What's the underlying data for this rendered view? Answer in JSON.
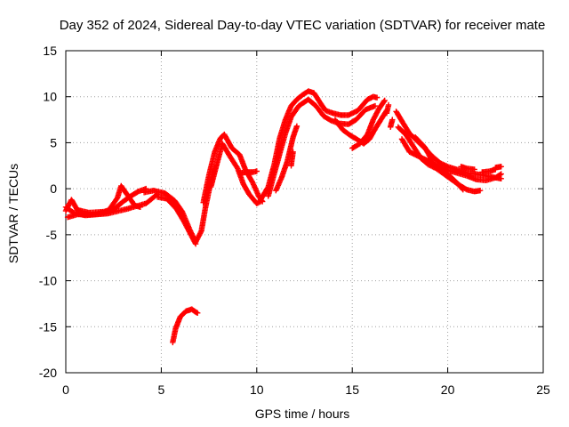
{
  "chart_data": {
    "type": "scatter",
    "title": "Day 352 of 2024, Sidereal Day-to-day VTEC variation (SDTVAR) for receiver mate",
    "xlabel": "GPS time / hours",
    "ylabel": "SDTVAR / TECUs",
    "xlim": [
      0,
      25
    ],
    "ylim": [
      -20,
      15
    ],
    "xticks": [
      0,
      5,
      10,
      15,
      20,
      25
    ],
    "xtick_labels": [
      "0",
      "5",
      "10",
      "15",
      "20",
      "25"
    ],
    "yticks": [
      -20,
      -15,
      -10,
      -5,
      0,
      5,
      10,
      15
    ],
    "ytick_labels": [
      "-20",
      "-15",
      "-10",
      "-5",
      "0",
      "5",
      "10",
      "15"
    ],
    "grid": true,
    "marker": "+",
    "series": [
      {
        "name": "SDTVAR",
        "color": "#ff0000",
        "tracks": [
          [
            [
              0.0,
              -2.4
            ],
            [
              0.3,
              -1.2
            ],
            [
              0.6,
              -2.3
            ],
            [
              1.2,
              -2.6
            ],
            [
              2.0,
              -2.5
            ],
            [
              2.6,
              -2.1
            ],
            [
              3.0,
              -1.4
            ],
            [
              3.4,
              -0.8
            ],
            [
              3.8,
              -0.3
            ],
            [
              4.2,
              0.0
            ]
          ],
          [
            [
              0.1,
              -3.1
            ],
            [
              0.6,
              -2.8
            ],
            [
              1.5,
              -2.8
            ],
            [
              2.2,
              -2.5
            ],
            [
              2.7,
              -1.0
            ],
            [
              2.9,
              0.3
            ],
            [
              3.2,
              -0.6
            ],
            [
              3.6,
              -1.8
            ],
            [
              3.9,
              -2.0
            ]
          ],
          [
            [
              0.0,
              -2.0
            ],
            [
              0.4,
              -2.6
            ],
            [
              1.0,
              -2.9
            ],
            [
              2.2,
              -2.7
            ],
            [
              3.2,
              -2.2
            ],
            [
              4.2,
              -1.6
            ],
            [
              4.8,
              -0.6
            ]
          ],
          [
            [
              4.1,
              -0.4
            ],
            [
              4.6,
              -0.2
            ],
            [
              5.2,
              -0.5
            ],
            [
              5.7,
              -1.3
            ],
            [
              6.1,
              -2.5
            ],
            [
              6.5,
              -4.5
            ],
            [
              6.8,
              -5.8
            ],
            [
              7.1,
              -4.6
            ],
            [
              7.3,
              -2.2
            ],
            [
              7.6,
              0.8
            ],
            [
              7.8,
              2.2
            ]
          ],
          [
            [
              4.8,
              -0.9
            ],
            [
              5.3,
              -1.1
            ],
            [
              5.8,
              -2.2
            ],
            [
              6.2,
              -3.6
            ],
            [
              6.6,
              -5.2
            ],
            [
              6.8,
              -6.0
            ]
          ],
          [
            [
              5.6,
              -16.7
            ],
            [
              5.75,
              -15.2
            ],
            [
              6.0,
              -13.9
            ],
            [
              6.3,
              -13.3
            ],
            [
              6.6,
              -13.1
            ],
            [
              6.8,
              -13.4
            ],
            [
              6.9,
              -13.5
            ]
          ],
          [
            [
              7.2,
              -1.5
            ],
            [
              7.5,
              1.5
            ],
            [
              7.8,
              4.0
            ],
            [
              8.1,
              5.5
            ],
            [
              8.3,
              5.9
            ],
            [
              8.7,
              4.4
            ],
            [
              9.1,
              3.7
            ],
            [
              9.4,
              2.1
            ],
            [
              9.8,
              0.6
            ],
            [
              10.1,
              -0.8
            ],
            [
              10.3,
              -1.4
            ]
          ],
          [
            [
              7.6,
              0.2
            ],
            [
              7.9,
              2.6
            ],
            [
              8.2,
              4.9
            ],
            [
              8.6,
              3.5
            ],
            [
              9.0,
              2.2
            ],
            [
              9.3,
              0.5
            ],
            [
              9.6,
              -0.6
            ],
            [
              10.0,
              -1.6
            ],
            [
              10.2,
              -1.4
            ]
          ],
          [
            [
              9.1,
              1.7
            ],
            [
              9.5,
              1.8
            ],
            [
              9.8,
              1.8
            ],
            [
              10.0,
              1.9
            ]
          ],
          [
            [
              10.2,
              -1.2
            ],
            [
              10.6,
              0.2
            ],
            [
              10.9,
              2.5
            ],
            [
              11.2,
              5.5
            ],
            [
              11.5,
              7.5
            ],
            [
              11.8,
              9.0
            ],
            [
              12.1,
              9.7
            ],
            [
              12.4,
              10.2
            ],
            [
              12.7,
              10.6
            ],
            [
              13.0,
              10.4
            ],
            [
              13.3,
              9.4
            ],
            [
              13.6,
              8.5
            ],
            [
              14.0,
              8.2
            ],
            [
              14.4,
              8.0
            ],
            [
              14.8,
              8.0
            ],
            [
              15.3,
              8.5
            ],
            [
              15.8,
              9.7
            ],
            [
              16.1,
              10.0
            ],
            [
              16.3,
              9.9
            ]
          ],
          [
            [
              10.6,
              -0.8
            ],
            [
              10.9,
              1.5
            ],
            [
              11.2,
              3.8
            ],
            [
              11.5,
              6.0
            ],
            [
              11.8,
              7.8
            ],
            [
              12.2,
              9.0
            ],
            [
              12.7,
              9.7
            ],
            [
              13.1,
              9.0
            ],
            [
              13.5,
              7.9
            ],
            [
              13.9,
              7.4
            ],
            [
              14.3,
              7.1
            ],
            [
              14.8,
              7.0
            ],
            [
              15.2,
              7.5
            ],
            [
              15.7,
              8.6
            ],
            [
              16.2,
              9.0
            ]
          ],
          [
            [
              11.0,
              -0.2
            ],
            [
              11.3,
              1.2
            ],
            [
              11.6,
              3.0
            ],
            [
              11.9,
              5.6
            ],
            [
              12.1,
              6.8
            ]
          ],
          [
            [
              11.8,
              2.5
            ],
            [
              11.9,
              4.0
            ]
          ],
          [
            [
              14.1,
              7.5
            ],
            [
              14.5,
              6.4
            ],
            [
              14.9,
              5.8
            ],
            [
              15.3,
              5.3
            ],
            [
              15.6,
              4.9
            ],
            [
              15.9,
              5.4
            ],
            [
              16.2,
              6.5
            ],
            [
              16.5,
              7.5
            ],
            [
              16.8,
              8.5
            ]
          ],
          [
            [
              15.0,
              4.4
            ],
            [
              15.4,
              4.9
            ],
            [
              15.8,
              5.9
            ],
            [
              16.1,
              7.5
            ],
            [
              16.4,
              8.7
            ],
            [
              16.7,
              9.6
            ]
          ],
          [
            [
              16.8,
              8.2
            ],
            [
              16.9,
              9.1
            ]
          ],
          [
            [
              17.0,
              6.7
            ],
            [
              17.1,
              7.5
            ]
          ],
          [
            [
              17.3,
              8.4
            ],
            [
              17.7,
              7.0
            ],
            [
              18.0,
              6.0
            ],
            [
              18.4,
              5.2
            ],
            [
              18.8,
              4.4
            ],
            [
              19.2,
              3.5
            ],
            [
              19.6,
              2.8
            ],
            [
              20.0,
              2.4
            ],
            [
              20.6,
              2.0
            ],
            [
              21.0,
              1.7
            ],
            [
              21.5,
              1.6
            ],
            [
              22.0,
              1.4
            ],
            [
              22.5,
              1.2
            ],
            [
              22.8,
              1.1
            ]
          ],
          [
            [
              17.4,
              6.7
            ],
            [
              17.8,
              5.9
            ],
            [
              18.2,
              4.6
            ],
            [
              18.6,
              3.3
            ],
            [
              19.0,
              2.6
            ],
            [
              19.4,
              2.2
            ],
            [
              19.8,
              1.6
            ],
            [
              20.2,
              1.0
            ],
            [
              20.6,
              0.4
            ],
            [
              21.0,
              -0.1
            ],
            [
              21.4,
              -0.3
            ],
            [
              21.7,
              -0.2
            ]
          ],
          [
            [
              17.6,
              5.4
            ],
            [
              18.0,
              4.0
            ],
            [
              18.5,
              3.5
            ],
            [
              19.0,
              3.0
            ],
            [
              19.6,
              2.2
            ],
            [
              20.1,
              1.4
            ],
            [
              20.5,
              0.6
            ],
            [
              20.8,
              -0.1
            ]
          ],
          [
            [
              18.3,
              5.6
            ],
            [
              18.8,
              4.5
            ],
            [
              19.3,
              2.6
            ],
            [
              20.0,
              2.0
            ],
            [
              20.5,
              1.7
            ],
            [
              21.0,
              1.4
            ],
            [
              21.5,
              1.0
            ],
            [
              22.0,
              0.9
            ],
            [
              22.5,
              1.2
            ],
            [
              22.8,
              1.6
            ]
          ],
          [
            [
              20.7,
              2.4
            ],
            [
              21.0,
              2.2
            ],
            [
              21.4,
              2.1
            ]
          ],
          [
            [
              21.8,
              1.8
            ],
            [
              22.2,
              1.9
            ],
            [
              22.5,
              2.1
            ]
          ],
          [
            [
              22.5,
              2.3
            ],
            [
              22.8,
              2.4
            ]
          ]
        ]
      }
    ]
  }
}
